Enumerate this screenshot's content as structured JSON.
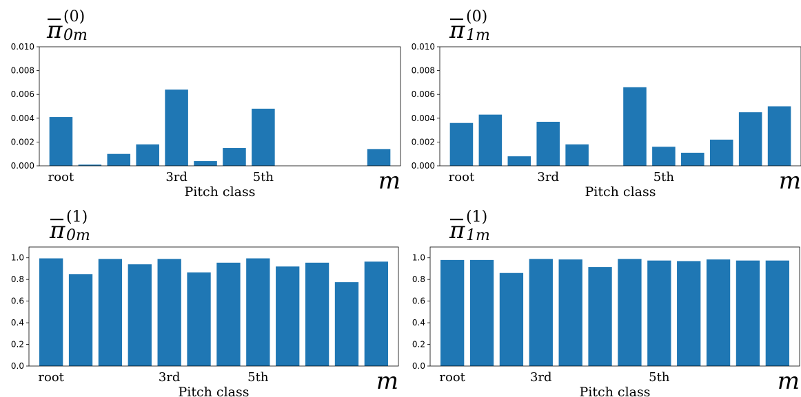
{
  "colors": {
    "bar": "#1f77b4"
  },
  "chart_data": [
    {
      "type": "bar",
      "title": {
        "base": "π",
        "superscript": "(0)",
        "subscript": "0m"
      },
      "xlabel": "Pitch class",
      "axis_symbol": "m",
      "ylim": [
        0,
        0.01
      ],
      "yticks": [
        "0.000",
        "0.002",
        "0.004",
        "0.006",
        "0.008",
        "0.010"
      ],
      "category_labels": [
        {
          "index": 0,
          "text": "root"
        },
        {
          "index": 4,
          "text": "3rd"
        },
        {
          "index": 7,
          "text": "5th"
        }
      ],
      "values": [
        0.0041,
        0.0001,
        0.001,
        0.0018,
        0.0064,
        0.0004,
        0.0015,
        0.0048,
        0,
        0,
        0,
        0.0014
      ]
    },
    {
      "type": "bar",
      "title": {
        "base": "π",
        "superscript": "(0)",
        "subscript": "1m"
      },
      "xlabel": "Pitch class",
      "axis_symbol": "m",
      "ylim": [
        0,
        0.01
      ],
      "yticks": [
        "0.000",
        "0.002",
        "0.004",
        "0.006",
        "0.008",
        "0.010"
      ],
      "category_labels": [
        {
          "index": 0,
          "text": "root"
        },
        {
          "index": 3,
          "text": "3rd"
        },
        {
          "index": 7,
          "text": "5th"
        }
      ],
      "values": [
        0.0036,
        0.0043,
        0.0008,
        0.0037,
        0.0018,
        0,
        0.0066,
        0.0016,
        0.0011,
        0.0022,
        0.0045,
        0.005
      ]
    },
    {
      "type": "bar",
      "title": {
        "base": "π",
        "superscript": "(1)",
        "subscript": "0m"
      },
      "xlabel": "Pitch class",
      "axis_symbol": "m",
      "ylim": [
        0,
        1.1
      ],
      "yticks": [
        "0.0",
        "0.2",
        "0.4",
        "0.6",
        "0.8",
        "1.0"
      ],
      "category_labels": [
        {
          "index": 0,
          "text": "root"
        },
        {
          "index": 4,
          "text": "3rd"
        },
        {
          "index": 7,
          "text": "5th"
        }
      ],
      "values": [
        0.995,
        0.85,
        0.99,
        0.94,
        0.99,
        0.865,
        0.955,
        0.995,
        0.92,
        0.955,
        0.775,
        0.965
      ]
    },
    {
      "type": "bar",
      "title": {
        "base": "π",
        "superscript": "(1)",
        "subscript": "1m"
      },
      "xlabel": "Pitch class",
      "axis_symbol": "m",
      "ylim": [
        0,
        1.1
      ],
      "yticks": [
        "0.0",
        "0.2",
        "0.4",
        "0.6",
        "0.8",
        "1.0"
      ],
      "category_labels": [
        {
          "index": 0,
          "text": "root"
        },
        {
          "index": 3,
          "text": "3rd"
        },
        {
          "index": 7,
          "text": "5th"
        }
      ],
      "values": [
        0.98,
        0.98,
        0.86,
        0.99,
        0.985,
        0.915,
        0.99,
        0.975,
        0.97,
        0.985,
        0.975,
        0.975
      ]
    }
  ]
}
